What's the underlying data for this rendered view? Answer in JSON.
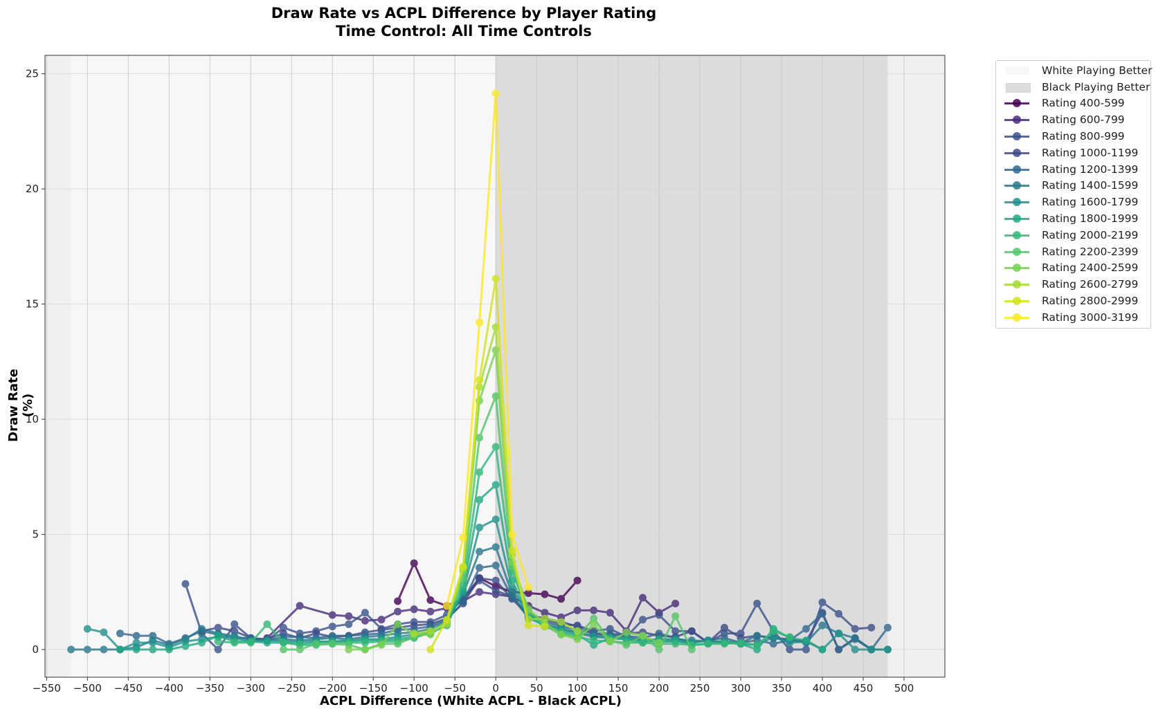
{
  "title_line1": "Draw Rate vs ACPL Difference by Player Rating",
  "title_line2": "Time Control: All Time Controls",
  "chart_data": {
    "type": "line",
    "title": "Draw Rate vs ACPL Difference by Player Rating\nTime Control: All Time Controls",
    "xlabel": "ACPL Difference (White ACPL - Black ACPL)",
    "ylabel": "Draw Rate (%)",
    "xlim": [
      -552,
      550
    ],
    "ylim": [
      -1.2,
      25.8
    ],
    "xticks": [
      -550,
      -500,
      -450,
      -400,
      -350,
      -300,
      -250,
      -200,
      -150,
      -100,
      -50,
      0,
      50,
      100,
      150,
      200,
      250,
      300,
      350,
      400,
      450,
      500
    ],
    "yticks": [
      0,
      5,
      10,
      15,
      20,
      25
    ],
    "grid": true,
    "legend_position": "outside upper right",
    "regions": [
      {
        "label": "White Playing Better",
        "x_range": [
          -520,
          0
        ],
        "color": "#f7f7f7"
      },
      {
        "label": "Black Playing Better",
        "x_range": [
          0,
          480
        ],
        "color": "#dcdcdc"
      }
    ],
    "series": [
      {
        "name": "Rating 400-599",
        "color": "#440154",
        "x": [
          -100,
          -80,
          -60,
          -40,
          -20,
          0,
          20,
          40,
          60,
          80,
          100,
          -120
        ],
        "y": [
          3.75,
          2.15,
          1.9,
          2.2,
          3.1,
          2.75,
          2.5,
          2.45,
          2.4,
          2.2,
          3.0,
          2.1
        ]
      },
      {
        "name": "Rating 600-799",
        "color": "#472c7a",
        "x": [
          -280,
          -240,
          -200,
          -180,
          -160,
          -140,
          -120,
          -100,
          -80,
          -60,
          -40,
          -20,
          0,
          20,
          40,
          60,
          80,
          100,
          120,
          140,
          160,
          180,
          200,
          220
        ],
        "y": [
          0.5,
          1.9,
          1.5,
          1.45,
          1.25,
          1.3,
          1.65,
          1.75,
          1.65,
          1.8,
          2.1,
          2.5,
          2.4,
          2.3,
          1.9,
          1.6,
          1.4,
          1.7,
          1.7,
          1.6,
          0.8,
          2.25,
          1.6,
          2.0
        ]
      },
      {
        "name": "Rating 800-999",
        "color": "#3b518b",
        "x": [
          -380,
          -360,
          -340,
          -320,
          -300,
          -280,
          -260,
          -240,
          -220,
          -200,
          -180,
          -160,
          -140,
          -120,
          -100,
          -80,
          -60,
          -40,
          -20,
          0,
          20,
          40,
          60,
          80,
          100,
          120,
          140,
          160,
          180,
          200,
          220,
          240,
          260,
          280,
          300,
          320,
          340,
          360,
          380,
          400,
          420,
          440,
          460
        ],
        "y": [
          2.85,
          0.7,
          0.0,
          1.1,
          0.5,
          0.4,
          0.95,
          0.7,
          0.8,
          1.0,
          1.1,
          1.6,
          0.9,
          1.1,
          1.2,
          1.2,
          1.5,
          2.2,
          3.0,
          2.55,
          2.3,
          1.5,
          1.3,
          1.1,
          1.05,
          0.8,
          0.9,
          0.55,
          1.3,
          1.5,
          0.8,
          0.8,
          0.3,
          0.7,
          0.7,
          2.0,
          0.8,
          0.0,
          0.0,
          2.05,
          1.55,
          0.9,
          0.95
        ]
      },
      {
        "name": "Rating 1000-1199",
        "color": "#3e4a89",
        "x": [
          -360,
          -340,
          -320,
          -300,
          -280,
          -260,
          -240,
          -220,
          -200,
          -180,
          -160,
          -140,
          -120,
          -100,
          -80,
          -60,
          -40,
          -20,
          0,
          20,
          40,
          60,
          80,
          100,
          120,
          140,
          160,
          180,
          200,
          220,
          240,
          260,
          280,
          300,
          320,
          340,
          360,
          380,
          400,
          420,
          440,
          460
        ],
        "y": [
          0.8,
          0.95,
          0.8,
          0.5,
          0.45,
          0.7,
          0.5,
          0.7,
          0.55,
          0.6,
          0.75,
          0.85,
          0.95,
          1.05,
          1.1,
          1.35,
          2.0,
          3.1,
          3.0,
          2.2,
          1.5,
          1.35,
          1.2,
          1.0,
          0.7,
          0.6,
          0.7,
          0.75,
          0.6,
          0.55,
          0.8,
          0.3,
          0.95,
          0.5,
          0.6,
          0.5,
          0.45,
          0.35,
          1.6,
          0.0,
          0.5,
          0.0
        ]
      },
      {
        "name": "Rating 1200-1399",
        "color": "#31688e",
        "x": [
          -460,
          -440,
          -420,
          -400,
          -380,
          -360,
          -340,
          -320,
          -300,
          -280,
          -260,
          -240,
          -220,
          -200,
          -180,
          -160,
          -140,
          -120,
          -100,
          -80,
          -60,
          -40,
          -20,
          0,
          20,
          40,
          60,
          80,
          100,
          120,
          140,
          160,
          180,
          200,
          220,
          240,
          260,
          280,
          300,
          320,
          340,
          360,
          380,
          400,
          420,
          440,
          460,
          480
        ],
        "y": [
          0.7,
          0.6,
          0.6,
          0.25,
          0.5,
          0.8,
          0.65,
          0.5,
          0.5,
          0.4,
          0.55,
          0.55,
          0.5,
          0.6,
          0.6,
          0.65,
          0.7,
          0.85,
          0.9,
          1.0,
          1.3,
          2.05,
          3.55,
          3.65,
          2.25,
          1.4,
          1.2,
          1.0,
          0.85,
          0.7,
          0.7,
          0.6,
          0.5,
          0.7,
          0.5,
          0.3,
          0.4,
          0.5,
          0.3,
          0.4,
          0.25,
          0.4,
          0.9,
          1.55,
          0.0,
          0.45,
          0.0,
          0.95
        ]
      },
      {
        "name": "Rating 1400-1599",
        "color": "#2a788e",
        "x": [
          -520,
          -500,
          -480,
          -460,
          -440,
          -420,
          -400,
          -380,
          -360,
          -340,
          -320,
          -300,
          -280,
          -260,
          -240,
          -220,
          -200,
          -180,
          -160,
          -140,
          -120,
          -100,
          -80,
          -60,
          -40,
          -20,
          0,
          20,
          40,
          60,
          80,
          100,
          120,
          140,
          160,
          180,
          200,
          220,
          240,
          260,
          280,
          300,
          320,
          340,
          360,
          380,
          400,
          420,
          440,
          460,
          480
        ],
        "y": [
          0.0,
          0.0,
          0.0,
          0.0,
          0.1,
          0.4,
          0.2,
          0.45,
          0.9,
          0.7,
          0.6,
          0.4,
          0.4,
          0.45,
          0.4,
          0.45,
          0.5,
          0.45,
          0.55,
          0.6,
          0.7,
          0.75,
          0.9,
          1.25,
          2.4,
          4.25,
          4.45,
          2.4,
          1.35,
          1.1,
          0.9,
          0.75,
          0.6,
          0.55,
          0.55,
          0.4,
          0.45,
          0.45,
          0.4,
          0.35,
          0.35,
          0.3,
          0.6,
          0.5,
          0.4,
          0.3,
          1.05,
          0.7,
          0.5,
          0.0,
          0.0
        ]
      },
      {
        "name": "Rating 1600-1799",
        "color": "#21918c",
        "x": [
          -500,
          -480,
          -460,
          -440,
          -420,
          -400,
          -380,
          -360,
          -340,
          -320,
          -300,
          -280,
          -260,
          -240,
          -220,
          -200,
          -180,
          -160,
          -140,
          -120,
          -100,
          -80,
          -60,
          -40,
          -20,
          0,
          20,
          40,
          60,
          80,
          100,
          120,
          140,
          160,
          180,
          200,
          220,
          240,
          260,
          280,
          300,
          320,
          340,
          360,
          380,
          400,
          420,
          440,
          460,
          480
        ],
        "y": [
          0.9,
          0.75,
          0.0,
          0.3,
          0.3,
          0.1,
          0.35,
          0.45,
          0.55,
          0.5,
          0.35,
          0.4,
          0.35,
          0.35,
          0.35,
          0.35,
          0.4,
          0.45,
          0.45,
          0.55,
          0.65,
          0.75,
          1.15,
          2.5,
          5.3,
          5.65,
          2.65,
          1.5,
          1.05,
          0.9,
          0.7,
          0.55,
          0.5,
          0.45,
          0.4,
          0.35,
          0.35,
          0.3,
          0.4,
          0.3,
          0.25,
          0.2,
          0.55,
          0.3,
          0.35,
          0.0,
          0.7,
          0.0,
          0.0,
          0.0
        ]
      },
      {
        "name": "Rating 1800-1999",
        "color": "#22a884",
        "x": [
          -460,
          -440,
          -420,
          -400,
          -380,
          -360,
          -340,
          -320,
          -300,
          -280,
          -260,
          -240,
          -220,
          -200,
          -180,
          -160,
          -140,
          -120,
          -100,
          -80,
          -60,
          -40,
          -20,
          0,
          20,
          40,
          60,
          80,
          100,
          120,
          140,
          160,
          180,
          200,
          220,
          240,
          260,
          280,
          300,
          320,
          340,
          360,
          380,
          400
        ],
        "y": [
          0.0,
          0.0,
          0.0,
          0.0,
          0.15,
          0.3,
          0.6,
          0.35,
          0.35,
          0.3,
          0.3,
          0.25,
          0.3,
          0.35,
          0.35,
          0.4,
          0.4,
          0.45,
          0.55,
          0.7,
          1.05,
          2.6,
          6.5,
          7.15,
          3.0,
          1.45,
          1.0,
          0.8,
          0.65,
          0.2,
          0.5,
          0.45,
          0.3,
          0.45,
          0.4,
          0.2,
          0.25,
          0.3,
          0.25,
          0.0,
          0.9,
          0.5,
          0.4,
          0.0
        ]
      },
      {
        "name": "Rating 2000-2199",
        "color": "#35b779",
        "x": [
          -340,
          -320,
          -300,
          -280,
          -260,
          -240,
          -220,
          -200,
          -180,
          -160,
          -140,
          -120,
          -100,
          -80,
          -60,
          -40,
          -20,
          0,
          20,
          40,
          60,
          80,
          100,
          120,
          140,
          160,
          180,
          200,
          220,
          240,
          260,
          280,
          300,
          320,
          340,
          360
        ],
        "y": [
          0.35,
          0.3,
          0.3,
          1.1,
          0.3,
          0.2,
          0.2,
          0.25,
          0.3,
          0.3,
          0.35,
          0.35,
          0.5,
          0.75,
          1.2,
          2.8,
          7.7,
          8.8,
          3.4,
          1.55,
          1.0,
          0.75,
          0.55,
          0.4,
          0.35,
          0.3,
          0.3,
          0.25,
          0.25,
          0.2,
          0.25,
          0.25,
          0.3,
          0.2,
          0.8,
          0.55
        ]
      },
      {
        "name": "Rating 2200-2399",
        "color": "#54c568",
        "x": [
          -260,
          -240,
          -220,
          -200,
          -180,
          -160,
          -140,
          -120,
          -100,
          -80,
          -60,
          -40,
          -20,
          0,
          20,
          40,
          60,
          80,
          100,
          120,
          140,
          160,
          180,
          200,
          220,
          240
        ],
        "y": [
          0.0,
          0.0,
          0.25,
          0.25,
          0.2,
          0.0,
          0.25,
          0.25,
          0.55,
          0.75,
          1.2,
          3.1,
          9.2,
          11.0,
          3.6,
          1.7,
          1.05,
          0.65,
          0.55,
          1.35,
          0.4,
          0.2,
          0.6,
          0.0,
          1.45,
          0.0
        ]
      },
      {
        "name": "Rating 2400-2599",
        "color": "#7ad151",
        "x": [
          -180,
          -160,
          -140,
          -120,
          -100,
          -80,
          -60,
          -40,
          -20,
          0,
          20,
          40,
          60,
          80,
          100,
          120,
          140,
          160,
          180,
          200
        ],
        "y": [
          0.0,
          0.0,
          0.2,
          1.1,
          0.65,
          0.65,
          1.25,
          3.4,
          10.8,
          13.0,
          3.8,
          1.75,
          1.15,
          0.65,
          0.45,
          1.1,
          0.35,
          0.75,
          0.6,
          0.3
        ]
      },
      {
        "name": "Rating 2600-2799",
        "color": "#a5db36",
        "x": [
          -100,
          -80,
          -60,
          -40,
          -20,
          0,
          20,
          40,
          60,
          80,
          100
        ],
        "y": [
          0.7,
          0.8,
          1.1,
          3.55,
          11.4,
          14.0,
          4.1,
          1.3,
          1.35,
          1.2,
          0.8
        ]
      },
      {
        "name": "Rating 2800-2999",
        "color": "#d2e21b",
        "x": [
          -80,
          -60,
          -40,
          -20,
          0,
          20,
          40,
          60
        ],
        "y": [
          0.0,
          1.3,
          3.6,
          11.7,
          16.1,
          4.3,
          1.05,
          1.0
        ]
      },
      {
        "name": "Rating 3000-3199",
        "color": "#fde725",
        "x": [
          -60,
          -40,
          -20,
          0,
          20,
          40
        ],
        "y": [
          1.9,
          4.85,
          14.2,
          24.15,
          5.0,
          2.7
        ]
      }
    ]
  },
  "legend": {
    "items": [
      {
        "label": "White Playing Better",
        "type": "patch",
        "color": "#f7f7f7"
      },
      {
        "label": "Black Playing Better",
        "type": "patch",
        "color": "#dcdcdc"
      },
      {
        "label": "Rating 400-599",
        "type": "line",
        "color": "#440154"
      },
      {
        "label": "Rating 600-799",
        "type": "line",
        "color": "#472c7a"
      },
      {
        "label": "Rating 800-999",
        "type": "line",
        "color": "#3b518b"
      },
      {
        "label": "Rating 1000-1199",
        "type": "line",
        "color": "#3e4a89"
      },
      {
        "label": "Rating 1200-1399",
        "type": "line",
        "color": "#31688e"
      },
      {
        "label": "Rating 1400-1599",
        "type": "line",
        "color": "#2a788e"
      },
      {
        "label": "Rating 1600-1799",
        "type": "line",
        "color": "#21918c"
      },
      {
        "label": "Rating 1800-1999",
        "type": "line",
        "color": "#22a884"
      },
      {
        "label": "Rating 2000-2199",
        "type": "line",
        "color": "#35b779"
      },
      {
        "label": "Rating 2200-2399",
        "type": "line",
        "color": "#54c568"
      },
      {
        "label": "Rating 2400-2599",
        "type": "line",
        "color": "#7ad151"
      },
      {
        "label": "Rating 2600-2799",
        "type": "line",
        "color": "#a5db36"
      },
      {
        "label": "Rating 2800-2999",
        "type": "line",
        "color": "#d2e21b"
      },
      {
        "label": "Rating 3000-3199",
        "type": "line",
        "color": "#fde725"
      }
    ]
  }
}
